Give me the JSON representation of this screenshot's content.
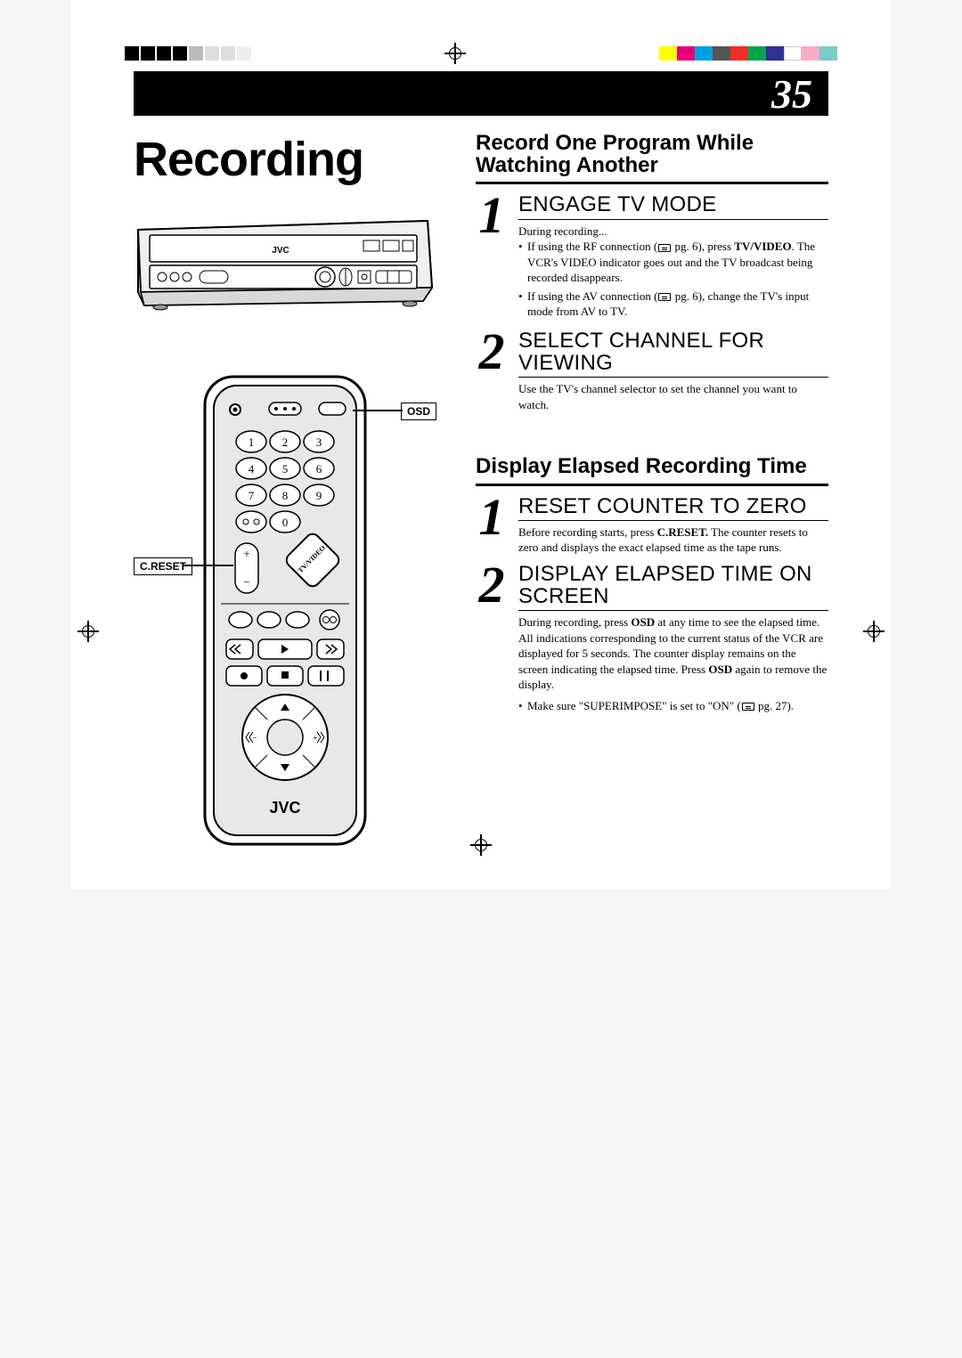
{
  "page_number": "35",
  "main_title": "Recording",
  "reg_colors": [
    "#ffff00",
    "#e6007e",
    "#00a0e3",
    "#555555",
    "#ee3124",
    "#00a550",
    "#2e3192",
    "#ffffff",
    "#f7adc8",
    "#7accc8"
  ],
  "callouts": {
    "osd": "OSD",
    "creset": "C.RESET",
    "tvvideo": "TV/VIDEO"
  },
  "brand": "JVC",
  "sections": [
    {
      "heading": "Record One Program While Watching Another",
      "steps": [
        {
          "num": "1",
          "title": "ENGAGE TV MODE",
          "intro": "During recording...",
          "bullets": [
            "If using the RF connection (☞ pg. 6), press <b>TV/VIDEO</b>. The VCR's VIDEO indicator goes out and the TV broadcast being recorded disappears.",
            "If using the AV connection (☞ pg. 6), change the TV's input mode from AV to TV."
          ]
        },
        {
          "num": "2",
          "title": "SELECT CHANNEL FOR VIEWING",
          "text": "Use the TV's channel selector to set the channel you want to watch."
        }
      ]
    },
    {
      "heading": "Display Elapsed Recording Time",
      "steps": [
        {
          "num": "1",
          "title": "RESET COUNTER TO ZERO",
          "text": "Before recording starts, press <b>C.RESET.</b> The counter resets to zero and displays the exact elapsed time as the tape runs."
        },
        {
          "num": "2",
          "title": "DISPLAY ELAPSED TIME ON SCREEN",
          "text": "During recording, press <b>OSD</b> at any time to see the elapsed time. All indications corresponding to the current status of the VCR are displayed for 5 seconds. The counter display remains on the screen indicating the elapsed time. Press <b>OSD</b> again to remove the display.",
          "bullets": [
            "Make sure \"SUPERIMPOSE\" is set to \"ON\" (☞ pg. 27)."
          ]
        }
      ]
    }
  ]
}
